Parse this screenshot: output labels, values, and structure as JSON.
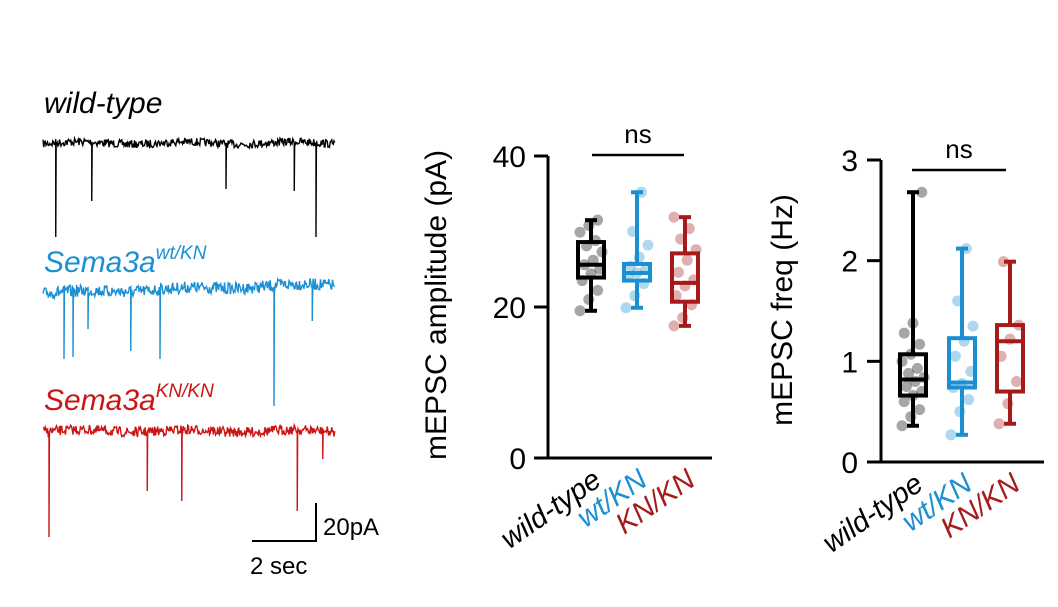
{
  "traces": {
    "items": [
      {
        "label_main": "wild-type",
        "label_sup": "",
        "color": "#000000"
      },
      {
        "label_main": "Sema3a",
        "label_sup": "wt/KN",
        "color": "#1b8fd2"
      },
      {
        "label_main": "Sema3a",
        "label_sup": "KN/KN",
        "color": "#cc1414"
      }
    ],
    "scalebar": {
      "vertical_label": "20pA",
      "horizontal_label": "2 sec"
    }
  },
  "groups": {
    "colors": [
      "#000000",
      "#1b8fd2",
      "#a61a1a"
    ]
  },
  "chart_data": [
    {
      "type": "box",
      "ylabel": "mEPSC amplitude (pA)",
      "ylim": [
        0,
        40
      ],
      "yticks": [
        "0",
        "20",
        "40"
      ],
      "categories": [
        "wild-type",
        "wt/KN",
        "KN/KN"
      ],
      "boxes": [
        {
          "min": 19.5,
          "q1": 23.9,
          "median": 25.6,
          "q3": 28.6,
          "max": 31.5
        },
        {
          "min": 19.9,
          "q1": 23.5,
          "median": 24.5,
          "q3": 25.7,
          "max": 35.2
        },
        {
          "min": 17.5,
          "q1": 20.7,
          "median": 23.2,
          "q3": 27.1,
          "max": 31.9
        }
      ],
      "points": [
        [
          19.5,
          21.0,
          22.2,
          23.5,
          24.4,
          25.0,
          25.6,
          26.2,
          27.3,
          28.1,
          28.8,
          29.9,
          30.8,
          31.5
        ],
        [
          19.9,
          21.5,
          23.1,
          24.0,
          24.5,
          25.0,
          25.4,
          26.6,
          28.2,
          30.0,
          35.2
        ],
        [
          17.5,
          18.6,
          20.3,
          21.5,
          22.8,
          23.6,
          24.6,
          26.2,
          27.6,
          29.0,
          30.4,
          31.9
        ]
      ],
      "significance": "ns"
    },
    {
      "type": "box",
      "ylabel": "mEPSC freq (Hz)",
      "ylim": [
        0,
        3
      ],
      "yticks": [
        "0",
        "1",
        "2",
        "3"
      ],
      "categories": [
        "wild-type",
        "wt/KN",
        "KN/KN"
      ],
      "boxes": [
        {
          "min": 0.36,
          "q1": 0.66,
          "median": 0.82,
          "q3": 1.07,
          "max": 2.68
        },
        {
          "min": 0.27,
          "q1": 0.74,
          "median": 0.79,
          "q3": 1.23,
          "max": 2.12
        },
        {
          "min": 0.38,
          "q1": 0.7,
          "median": 1.2,
          "q3": 1.36,
          "max": 1.99
        }
      ],
      "points": [
        [
          0.36,
          0.45,
          0.52,
          0.6,
          0.66,
          0.7,
          0.75,
          0.8,
          0.84,
          0.88,
          0.93,
          1.0,
          1.07,
          1.17,
          1.28,
          1.38,
          2.68
        ],
        [
          0.27,
          0.5,
          0.62,
          0.74,
          0.78,
          0.9,
          1.05,
          1.2,
          1.35,
          1.6,
          2.12
        ],
        [
          0.38,
          0.58,
          0.8,
          1.05,
          1.22,
          1.36,
          1.99
        ]
      ],
      "significance": "ns"
    }
  ]
}
